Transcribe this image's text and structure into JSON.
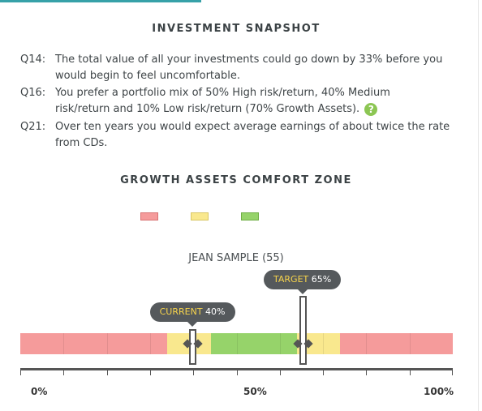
{
  "snapshot": {
    "title": "INVESTMENT SNAPSHOT",
    "questions": [
      {
        "code": "Q14:",
        "line1": "The total value of all your investments could go down by 33% before you",
        "line2": "would begin to feel uncomfortable."
      },
      {
        "code": "Q16:",
        "line1": "You prefer a portfolio mix of 50% High risk/return, 40% Medium",
        "line2": "risk/return and 10% Low risk/return (70% Growth Assets)."
      },
      {
        "code": "Q21:",
        "line1": "Over ten years you would expect average earnings of about twice the rate",
        "line2": "from CDs."
      }
    ],
    "help_icon": "question-mark-icon",
    "help_glyph": "?"
  },
  "comfort_zone": {
    "title": "GROWTH ASSETS COMFORT ZONE",
    "legend_colors": [
      "#f59b9b",
      "#f9e88e",
      "#96d36a"
    ],
    "person": "JEAN SAMPLE (55)",
    "current": {
      "label": "CURRENT",
      "value": "40%",
      "fraction": 0.4
    },
    "target": {
      "label": "TARGET",
      "value": "65%",
      "fraction": 0.65
    },
    "zones": [
      {
        "from": 0.0,
        "to": 0.34,
        "color": "#f59b9b"
      },
      {
        "from": 0.34,
        "to": 0.44,
        "color": "#f9e88e"
      },
      {
        "from": 0.44,
        "to": 0.64,
        "color": "#96d36a"
      },
      {
        "from": 0.64,
        "to": 0.74,
        "color": "#f9e88e"
      },
      {
        "from": 0.74,
        "to": 1.0,
        "color": "#f59b9b"
      }
    ],
    "axis": {
      "min": "0%",
      "mid": "50%",
      "max": "100%"
    }
  }
}
